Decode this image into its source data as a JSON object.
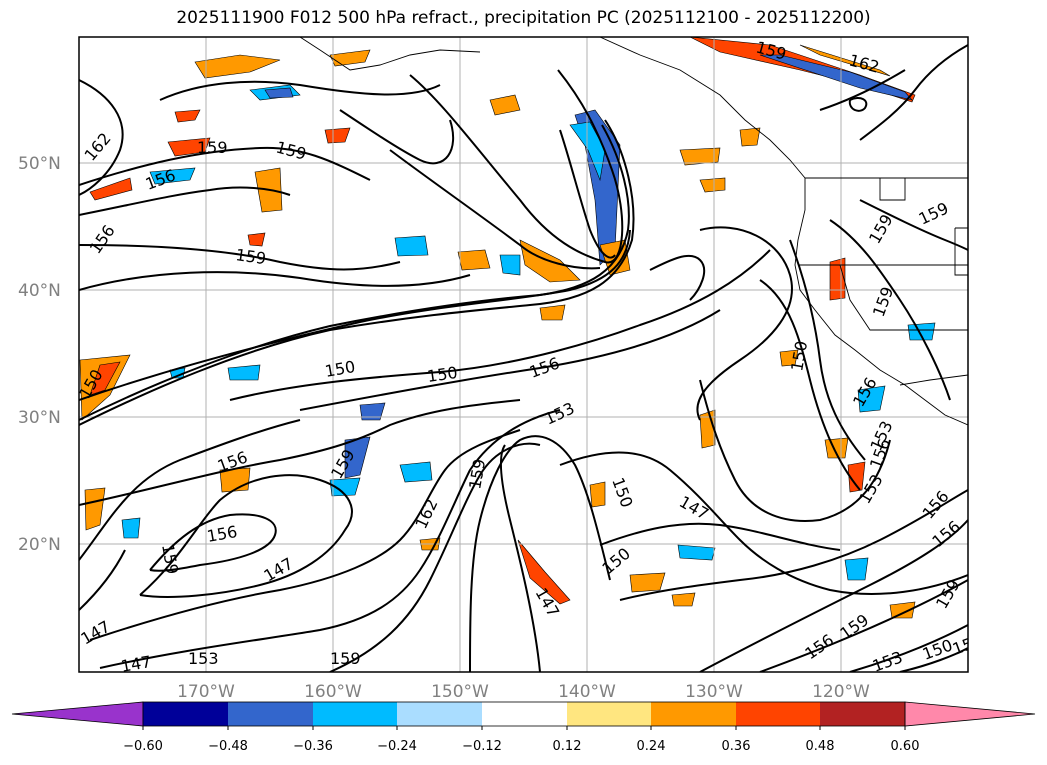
{
  "title": "2025111900 F012 500 hPa refract., precipitation PC (2025112100 - 2025112200)",
  "map": {
    "lat_labels": [
      "50°N",
      "40°N",
      "30°N",
      "20°N"
    ],
    "lon_labels": [
      "170°W",
      "160°W",
      "150°W",
      "140°W",
      "130°W",
      "120°W"
    ],
    "contour_labels": [
      {
        "text": "162"
      },
      {
        "text": "159"
      },
      {
        "text": "156"
      },
      {
        "text": "156"
      },
      {
        "text": "159"
      },
      {
        "text": "159"
      },
      {
        "text": "150"
      },
      {
        "text": "150"
      },
      {
        "text": "150"
      },
      {
        "text": "156"
      },
      {
        "text": "153"
      },
      {
        "text": "150"
      },
      {
        "text": "159"
      },
      {
        "text": "159"
      },
      {
        "text": "159"
      },
      {
        "text": "156"
      },
      {
        "text": "153"
      },
      {
        "text": "156"
      },
      {
        "text": "153"
      },
      {
        "text": "162"
      },
      {
        "text": "159"
      },
      {
        "text": "150"
      },
      {
        "text": "147"
      },
      {
        "text": "150"
      },
      {
        "text": "159"
      },
      {
        "text": "156"
      },
      {
        "text": "159"
      },
      {
        "text": "156"
      },
      {
        "text": "147"
      },
      {
        "text": "147"
      },
      {
        "text": "147"
      },
      {
        "text": "153"
      },
      {
        "text": "159"
      },
      {
        "text": "147"
      },
      {
        "text": "150"
      },
      {
        "text": "156"
      },
      {
        "text": "159"
      },
      {
        "text": "159"
      },
      {
        "text": "153"
      },
      {
        "text": "156"
      },
      {
        "text": "162"
      },
      {
        "text": "159"
      },
      {
        "text": "150"
      },
      {
        "text": "156"
      }
    ],
    "colors": {
      "grid": "#b0b0b0",
      "contour": "#000000",
      "lat_lon_labels": "#808080"
    }
  },
  "colorbar": {
    "ticks": [
      "−0.60",
      "−0.48",
      "−0.36",
      "−0.24",
      "−0.12",
      "0.12",
      "0.24",
      "0.36",
      "0.48",
      "0.60"
    ],
    "colors": [
      "#9933cc",
      "#000099",
      "#3366cc",
      "#00bbff",
      "#aaddff",
      "#ffffff",
      "#ffe680",
      "#ff9900",
      "#ff4400",
      "#b22222",
      "#ff88aa"
    ]
  }
}
